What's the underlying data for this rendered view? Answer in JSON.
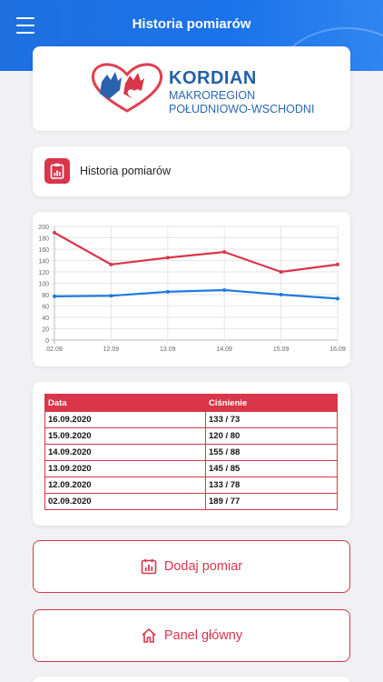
{
  "header": {
    "title": "Historia pomiarów"
  },
  "logo": {
    "name": "KORDIAN",
    "line1": "MAKROREGION",
    "line2": "POŁUDNIOWO-WSCHODNI"
  },
  "section": {
    "title": "Historia pomiarów",
    "icon": "clipboard-chart-icon"
  },
  "chart_data": {
    "type": "line",
    "x": [
      "02.09",
      "12.09",
      "13.09",
      "14.09",
      "15.09",
      "16.09"
    ],
    "series": [
      {
        "values": [
          189,
          133,
          145,
          155,
          120,
          133
        ],
        "color": "#d9364a"
      },
      {
        "values": [
          77,
          78,
          85,
          88,
          80,
          73
        ],
        "color": "#1f7ae0"
      }
    ],
    "yticks": [
      0,
      20,
      40,
      60,
      80,
      100,
      120,
      140,
      160,
      180,
      200
    ],
    "ylim": [
      0,
      200
    ],
    "grid": true,
    "title": "",
    "xlabel": "",
    "ylabel": ""
  },
  "table": {
    "headers": [
      "Data",
      "Ciśnienie"
    ],
    "rows": [
      [
        "16.09.2020",
        "133 / 73"
      ],
      [
        "15.09.2020",
        "120 / 80"
      ],
      [
        "14.09.2020",
        "155 / 88"
      ],
      [
        "13.09.2020",
        "145 / 85"
      ],
      [
        "12.09.2020",
        "133 / 78"
      ],
      [
        "02.09.2020",
        "189 / 77"
      ]
    ]
  },
  "buttons": {
    "add": {
      "label": "Dodaj pomiar",
      "icon": "calendar-chart-icon"
    },
    "home": {
      "label": "Panel główny",
      "icon": "home-icon"
    }
  },
  "colors": {
    "accent": "#d9364a",
    "primary": "#1f6fe0"
  }
}
